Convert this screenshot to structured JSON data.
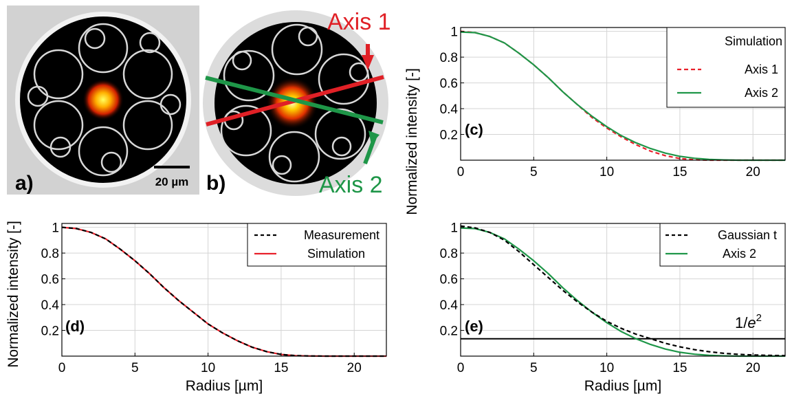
{
  "images": {
    "a": {
      "label": "a)",
      "scalebar_text": "20 µm"
    },
    "b": {
      "label": "b)",
      "axis1_label": "Axis 1",
      "axis2_label": "Axis 2",
      "axis1_color": "#e02026",
      "axis2_color": "#1e9648"
    }
  },
  "colors": {
    "red": "#e8202a",
    "green": "#1e9648",
    "black": "#000000",
    "grid": "#d4d4d4"
  },
  "chart_data": [
    {
      "id": "c",
      "type": "line",
      "panel_label": "(c)",
      "xlabel": "",
      "ylabel": "Normalized intensity [-]",
      "xlim": [
        0,
        22.2
      ],
      "ylim": [
        0,
        1.03
      ],
      "xticks": [
        0,
        5,
        10,
        15,
        20
      ],
      "yticks": [
        0.2,
        0.4,
        0.6,
        0.8,
        1
      ],
      "ytick_labels": [
        "0.2",
        "0.4",
        "0.6",
        "0.8",
        "1"
      ],
      "grid": true,
      "legend": {
        "title": "Simulation",
        "placement": "top-right"
      },
      "series": [
        {
          "name": "Axis 1",
          "color": "#e8202a",
          "dash": true,
          "x": [
            0,
            1,
            2,
            3,
            4,
            5,
            6,
            7,
            8,
            9,
            10,
            11,
            12,
            13,
            14,
            15,
            16,
            17,
            18,
            19,
            20,
            21,
            22.2
          ],
          "y": [
            1.0,
            0.99,
            0.96,
            0.91,
            0.83,
            0.74,
            0.64,
            0.53,
            0.43,
            0.33,
            0.25,
            0.18,
            0.12,
            0.07,
            0.035,
            0.013,
            0.003,
            0.0,
            0.0,
            0.0,
            0.0,
            0.0,
            0.0
          ]
        },
        {
          "name": "Axis 2",
          "color": "#1e9648",
          "dash": false,
          "x": [
            0,
            1,
            2,
            3,
            4,
            5,
            6,
            7,
            8,
            9,
            10,
            11,
            12,
            13,
            14,
            15,
            16,
            17,
            18,
            19,
            20,
            21,
            22.2
          ],
          "y": [
            0.995,
            0.99,
            0.96,
            0.91,
            0.83,
            0.74,
            0.64,
            0.53,
            0.43,
            0.34,
            0.26,
            0.19,
            0.135,
            0.09,
            0.055,
            0.03,
            0.015,
            0.006,
            0.002,
            0.0,
            0.0,
            0.0,
            0.0
          ]
        }
      ]
    },
    {
      "id": "d",
      "type": "line",
      "panel_label": "(d)",
      "xlabel": "Radius [µm]",
      "ylabel": "Normalized intensity [-]",
      "xlim": [
        0,
        22.2
      ],
      "ylim": [
        0,
        1.03
      ],
      "xticks": [
        0,
        5,
        10,
        15,
        20
      ],
      "yticks": [
        0.2,
        0.4,
        0.6,
        0.8,
        1
      ],
      "ytick_labels": [
        "0.2",
        "0.4",
        "0.6",
        "0.8",
        "1"
      ],
      "grid": true,
      "legend": {
        "title": "",
        "placement": "top-right"
      },
      "series": [
        {
          "name": "Simulation",
          "color": "#e8202a",
          "dash": false,
          "x": [
            0,
            1,
            2,
            3,
            4,
            5,
            6,
            7,
            8,
            9,
            10,
            11,
            12,
            13,
            14,
            15,
            16,
            17,
            18,
            19,
            20,
            21,
            22.2
          ],
          "y": [
            1.0,
            0.99,
            0.96,
            0.91,
            0.83,
            0.74,
            0.64,
            0.53,
            0.43,
            0.34,
            0.25,
            0.18,
            0.12,
            0.07,
            0.035,
            0.013,
            0.004,
            0.001,
            0.0,
            0.0,
            0.0,
            0.0,
            0.0
          ]
        },
        {
          "name": "Measurement",
          "color": "#000000",
          "dash": true,
          "x": [
            0,
            1,
            2,
            3,
            4,
            5,
            6,
            7,
            8,
            9,
            10,
            11,
            12,
            13,
            14,
            15,
            16,
            17,
            18,
            19,
            20,
            21,
            22.2
          ],
          "y": [
            1.0,
            0.99,
            0.96,
            0.91,
            0.83,
            0.74,
            0.64,
            0.53,
            0.43,
            0.34,
            0.25,
            0.18,
            0.12,
            0.07,
            0.035,
            0.013,
            0.004,
            0.001,
            0.0,
            0.0,
            0.0,
            0.0,
            0.0
          ]
        }
      ]
    },
    {
      "id": "e",
      "type": "line",
      "panel_label": "(e)",
      "xlabel": "Radius [µm]",
      "ylabel": "",
      "xlim": [
        0,
        22.2
      ],
      "ylim": [
        0,
        1.03
      ],
      "xticks": [
        0,
        5,
        10,
        15,
        20
      ],
      "yticks": [
        0.2,
        0.4,
        0.6,
        0.8,
        1
      ],
      "ytick_labels": [
        "0.2",
        "0.4",
        "0.6",
        "0.8",
        "1"
      ],
      "grid": true,
      "legend": {
        "title": "",
        "placement": "top-right"
      },
      "hline": {
        "y": 0.135,
        "label_prefix": "1/",
        "label_var": "e",
        "label_exp": "2"
      },
      "series": [
        {
          "name": "Axis 2",
          "color": "#1e9648",
          "dash": false,
          "x": [
            0,
            1,
            2,
            3,
            4,
            5,
            6,
            7,
            8,
            9,
            10,
            11,
            12,
            13,
            14,
            15,
            16,
            17,
            18,
            19,
            20,
            21,
            22.2
          ],
          "y": [
            0.995,
            0.99,
            0.96,
            0.91,
            0.83,
            0.74,
            0.64,
            0.53,
            0.43,
            0.34,
            0.26,
            0.19,
            0.135,
            0.09,
            0.055,
            0.03,
            0.015,
            0.006,
            0.002,
            0.0,
            0.0,
            0.0,
            0.0
          ]
        },
        {
          "name": "Gaussian t",
          "color": "#000000",
          "dash": true,
          "x": [
            0,
            1,
            2,
            3,
            4,
            5,
            6,
            7,
            8,
            9,
            10,
            11,
            12,
            13,
            14,
            15,
            16,
            17,
            18,
            19,
            20,
            21,
            22.2
          ],
          "y": [
            1.01,
            0.995,
            0.96,
            0.9,
            0.81,
            0.71,
            0.61,
            0.51,
            0.42,
            0.34,
            0.27,
            0.215,
            0.17,
            0.135,
            0.1,
            0.072,
            0.05,
            0.034,
            0.022,
            0.014,
            0.009,
            0.006,
            0.004
          ]
        }
      ]
    }
  ]
}
